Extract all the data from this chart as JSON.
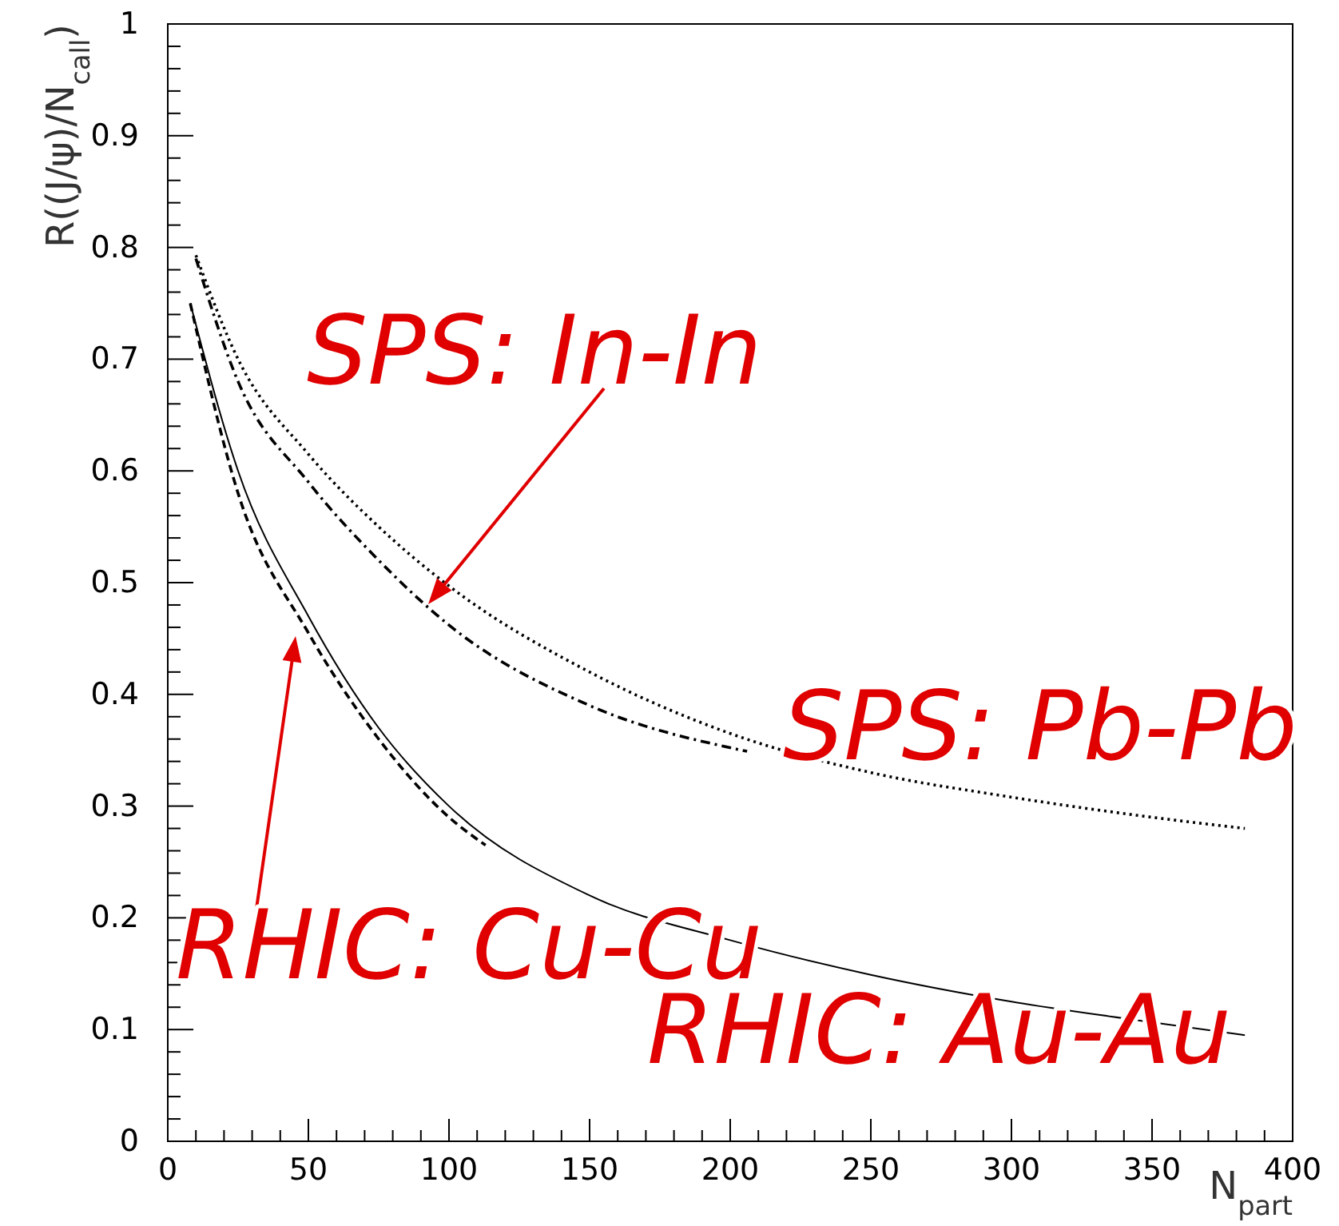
{
  "chart_data": {
    "type": "line",
    "xlabel": "N$_{part}$",
    "ylabel": "R((J/ψ)/N$_{call}$)",
    "xlim": [
      0,
      400
    ],
    "ylim": [
      0,
      1
    ],
    "xticks": [
      0,
      50,
      100,
      150,
      200,
      250,
      300,
      350,
      400
    ],
    "yticks": [
      0,
      0.1,
      0.2,
      0.3,
      0.4,
      0.5,
      0.6,
      0.7,
      0.8,
      0.9,
      1
    ],
    "grid": false,
    "marker": "none",
    "series": [
      {
        "color": "#000000",
        "line_style": "dotted",
        "x": [
          10,
          25,
          50,
          75,
          100,
          150,
          200,
          250,
          300,
          350,
          383
        ],
        "values": [
          0.793,
          0.7,
          0.615,
          0.55,
          0.497,
          0.42,
          0.365,
          0.33,
          0.308,
          0.29,
          0.28
        ]
      },
      {
        "color": "#000000",
        "line_style": "dashdot",
        "x": [
          10,
          25,
          50,
          75,
          100,
          150,
          206
        ],
        "values": [
          0.79,
          0.68,
          0.59,
          0.52,
          0.462,
          0.39,
          0.349
        ]
      },
      {
        "color": "#000000",
        "line_style": "solid",
        "x": [
          8,
          25,
          50,
          75,
          100,
          150,
          200,
          250,
          300,
          340,
          383
        ],
        "values": [
          0.75,
          0.6,
          0.47,
          0.37,
          0.3,
          0.22,
          0.18,
          0.149,
          0.125,
          0.11,
          0.095
        ]
      },
      {
        "color": "#000000",
        "line_style": "dashed",
        "x": [
          8,
          25,
          50,
          75,
          100,
          113
        ],
        "values": [
          0.75,
          0.58,
          0.455,
          0.36,
          0.29,
          0.265
        ]
      }
    ],
    "annotations": [
      "SPS: In-In",
      "SPS: Pb-Pb",
      "RHIC: Cu-Cu",
      "RHIC: Au-Au"
    ]
  }
}
